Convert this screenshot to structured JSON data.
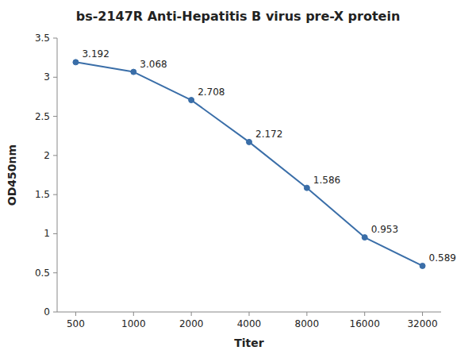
{
  "chart_data": {
    "type": "line",
    "title": "bs-2147R Anti-Hepatitis B virus pre-X protein",
    "x_label": "Titer",
    "y_label": "OD450nm",
    "x": [
      500,
      1000,
      2000,
      4000,
      8000,
      16000,
      32000
    ],
    "values": [
      3.192,
      3.068,
      2.708,
      2.172,
      1.586,
      0.953,
      0.589
    ],
    "color": "#3A6EA8",
    "marker": "circle",
    "log": "x",
    "xlim": [
      400,
      40000
    ],
    "xticks": [
      500,
      1000,
      2000,
      4000,
      8000,
      16000,
      32000
    ],
    "ylim": [
      0,
      3.5
    ],
    "yticks": [
      0,
      0.5,
      1,
      1.5,
      2,
      2.5,
      3,
      3.5
    ],
    "grid": false,
    "data_labels": true
  }
}
